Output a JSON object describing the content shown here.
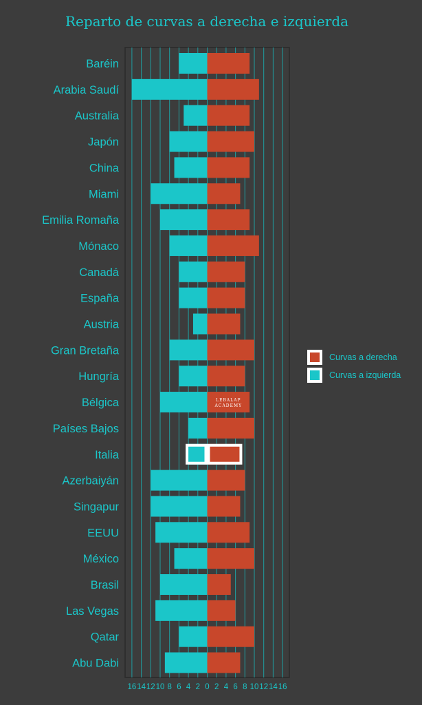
{
  "colors": {
    "background": "#3c3c3c",
    "text": "#1bc6c9",
    "right": "#c8472b",
    "left": "#1bc6c9",
    "grid": "#1f9ea1",
    "highlight": "#ffffff"
  },
  "watermark": [
    "LEBALAP",
    "ACADEMY"
  ],
  "chart_data": {
    "type": "bar",
    "orientation": "horizontal-diverging",
    "title": "Reparto de curvas a derecha e izquierda",
    "categories": [
      "Baréin",
      "Arabia Saudí",
      "Australia",
      "Japón",
      "China",
      "Miami",
      "Emilia Romaña",
      "Mónaco",
      "Canadá",
      "España",
      "Austria",
      "Gran Bretaña",
      "Hungría",
      "Bélgica",
      "Países Bajos",
      "Italia",
      "Azerbaiyán",
      "Singapur",
      "EEUU",
      "México",
      "Brasil",
      "Las Vegas",
      "Qatar",
      "Abu Dabi"
    ],
    "series": [
      {
        "name": "Curvas a derecha",
        "values": [
          9,
          11,
          9,
          10,
          9,
          7,
          9,
          11,
          8,
          8,
          7,
          10,
          8,
          9,
          10,
          7,
          8,
          7,
          9,
          10,
          5,
          6,
          10,
          7
        ]
      },
      {
        "name": "Curvas a izquierda",
        "values": [
          6,
          16,
          5,
          8,
          7,
          12,
          10,
          8,
          6,
          6,
          3,
          8,
          6,
          10,
          4,
          4,
          12,
          12,
          11,
          7,
          10,
          11,
          6,
          9
        ]
      }
    ],
    "xlim": [
      -17,
      17
    ],
    "xticks": [
      "16",
      "14",
      "12",
      "10",
      "8",
      "6",
      "4",
      "2",
      "0",
      "2",
      "4",
      "6",
      "8",
      "10",
      "12",
      "14",
      "16"
    ],
    "highlighted_category": "Italia",
    "legend_position": "right",
    "grid": true
  }
}
